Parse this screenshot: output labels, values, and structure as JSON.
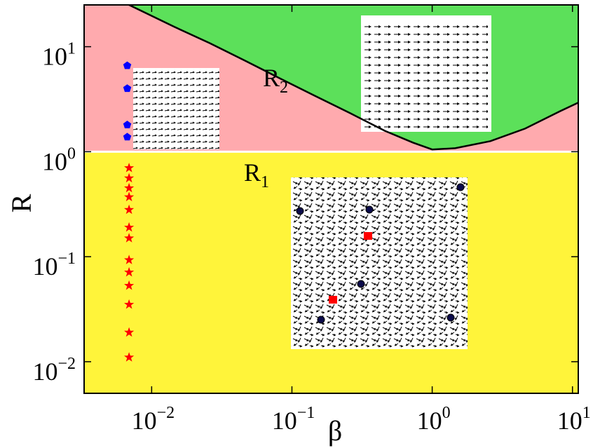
{
  "chart_data": {
    "type": "scatter",
    "x_label": "β",
    "y_label": "R",
    "xscale": "log",
    "yscale": "log",
    "xlim": [
      0.0033,
      11
    ],
    "ylim": [
      0.005,
      25
    ],
    "xticks": [
      {
        "value": 0.01,
        "label": "10",
        "exponent": "−2"
      },
      {
        "value": 0.1,
        "label": "10",
        "exponent": "−1"
      },
      {
        "value": 1,
        "label": "10",
        "exponent": "0"
      },
      {
        "value": 10,
        "label": "10",
        "exponent": "1"
      }
    ],
    "yticks": [
      {
        "value": 0.01,
        "label": "10",
        "exponent": "−2"
      },
      {
        "value": 0.1,
        "label": "10",
        "exponent": "−1"
      },
      {
        "value": 1,
        "label": "10",
        "exponent": "0"
      },
      {
        "value": 10,
        "label": "10",
        "exponent": "1"
      }
    ],
    "boundary": {
      "value": 1,
      "color": "#ffffff",
      "upper_color": "#ffaaae",
      "lower_color": "#fff43a"
    },
    "curve": {
      "color": "#000000",
      "fill": "#5ce05a",
      "x": [
        0.0069,
        0.0146,
        0.026,
        0.046,
        0.082,
        0.146,
        0.26,
        0.46,
        0.73,
        1.0,
        1.46,
        2.6,
        4.6,
        8.2,
        11
      ],
      "values": [
        25,
        15.4,
        10.8,
        7.4,
        5.0,
        3.4,
        2.33,
        1.58,
        1.22,
        1.05,
        1.08,
        1.26,
        1.66,
        2.44,
        2.93
      ]
    },
    "series": [
      {
        "color": "#0000ff",
        "marker": "pentagon",
        "x": [
          0.0067,
          0.0067,
          0.0067,
          0.0067
        ],
        "values": [
          6.6,
          4.0,
          1.8,
          1.38
        ]
      },
      {
        "color": "#ff0000",
        "marker": "star",
        "x": [
          0.0069,
          0.0069,
          0.0069,
          0.0069,
          0.0069,
          0.0069,
          0.0069,
          0.0069,
          0.0069,
          0.0069,
          0.0069,
          0.0069,
          0.0069
        ],
        "values": [
          0.7,
          0.56,
          0.45,
          0.37,
          0.28,
          0.19,
          0.15,
          0.093,
          0.071,
          0.053,
          0.035,
          0.019,
          0.011
        ]
      }
    ],
    "annotations": [
      {
        "text": "R",
        "subscript": "2"
      },
      {
        "text": "R",
        "subscript": "1"
      }
    ]
  }
}
